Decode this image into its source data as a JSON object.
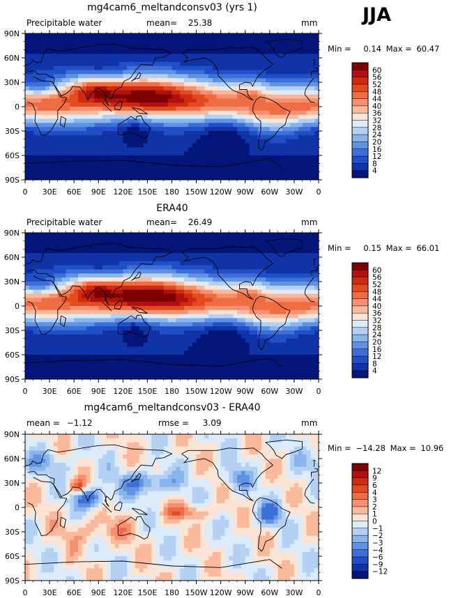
{
  "season": "JJA",
  "colorbars": {
    "abs_levels": [
      "60",
      "56",
      "52",
      "48",
      "44",
      "40",
      "36",
      "32",
      "28",
      "24",
      "20",
      "16",
      "12",
      "8",
      "4"
    ],
    "abs_colors": [
      "#7d0000",
      "#b01010",
      "#d02a10",
      "#e24a20",
      "#ef6d42",
      "#f79070",
      "#fbb99c",
      "#fde5d6",
      "#dcebfa",
      "#b4d1f4",
      "#8ab4ec",
      "#5f92e2",
      "#3c70d8",
      "#2050c8",
      "#1034a8",
      "#04157a"
    ],
    "diff_levels": [
      "12",
      "9",
      "6",
      "4",
      "3",
      "2",
      "1",
      "0",
      "−1",
      "−2",
      "−3",
      "−4",
      "−6",
      "−9",
      "−12"
    ],
    "diff_colors": [
      "#7d0000",
      "#b01010",
      "#d02a10",
      "#e24a20",
      "#ef6d42",
      "#f79070",
      "#fbb99c",
      "#fde5d6",
      "#dcebfa",
      "#b4d1f4",
      "#8ab4ec",
      "#5f92e2",
      "#3c70d8",
      "#2050c8",
      "#1034a8",
      "#04157a"
    ]
  },
  "axes": {
    "lat_ticks": [
      "90N",
      "60N",
      "30N",
      "0",
      "30S",
      "60S",
      "90S"
    ],
    "lon_ticks": [
      "0",
      "30E",
      "60E",
      "90E",
      "120E",
      "150E",
      "180",
      "150W",
      "120W",
      "90W",
      "60W",
      "30W",
      "0"
    ]
  },
  "chart_data": [
    {
      "type": "heatmap",
      "title": "mg4cam6_meltandconsv03 (yrs 1)",
      "left_label": "Precipitable water",
      "center_label": "mean=",
      "center_value": "25.38",
      "units": "mm",
      "min_label": "Min =",
      "min_value": "0.14",
      "max_label": "Max =",
      "max_value": "60.47",
      "variable": "Precipitable water",
      "mean": 25.38,
      "min": 0.14,
      "max": 60.47,
      "xlim": [
        0,
        360
      ],
      "ylim": [
        -90,
        90
      ],
      "colorbar": "abs"
    },
    {
      "type": "heatmap",
      "title": "ERA40",
      "left_label": "Precipitable water",
      "center_label": "mean=",
      "center_value": "26.49",
      "units": "mm",
      "min_label": "Min =",
      "min_value": "0.15",
      "max_label": "Max =",
      "max_value": "66.01",
      "variable": "Precipitable water",
      "mean": 26.49,
      "min": 0.15,
      "max": 66.01,
      "xlim": [
        0,
        360
      ],
      "ylim": [
        -90,
        90
      ],
      "colorbar": "abs"
    },
    {
      "type": "heatmap",
      "title": "mg4cam6_meltandconsv03 - ERA40",
      "left_label": "mean =",
      "left_value": "−1.12",
      "center_label": "rmse =",
      "center_value": "3.09",
      "units": "mm",
      "min_label": "Min =",
      "min_value": "−14.28",
      "max_label": "Max =",
      "max_value": "10.96",
      "mean": -1.12,
      "rmse": 3.09,
      "min": -14.28,
      "max": 10.96,
      "xlim": [
        0,
        360
      ],
      "ylim": [
        -90,
        90
      ],
      "colorbar": "diff"
    }
  ]
}
